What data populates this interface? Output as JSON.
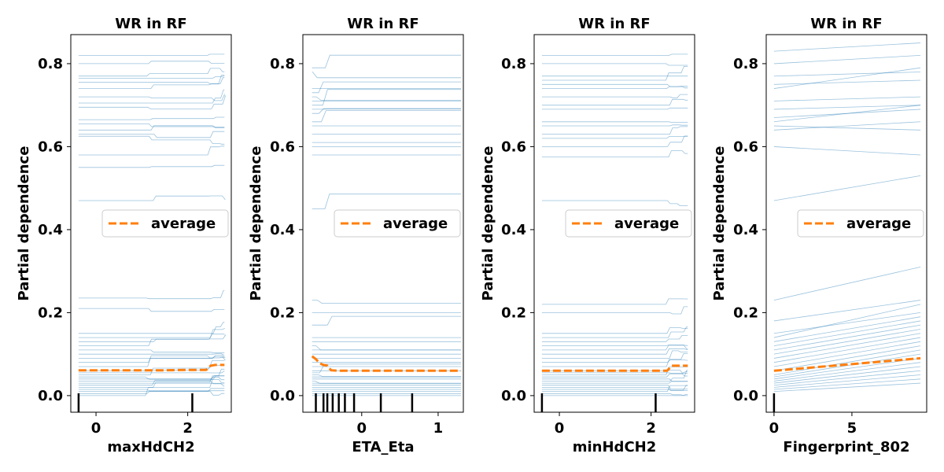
{
  "colors": {
    "ice": "#1f77b4",
    "average": "#ff7f0e",
    "rug": "#000000",
    "legend_border": "#cccccc"
  },
  "chart_data": [
    {
      "type": "line",
      "title": "WR in RF",
      "xlabel": "maxHdCH2",
      "ylabel": "Partial dependence",
      "xlim": [
        -0.55,
        2.95
      ],
      "ylim": [
        -0.04,
        0.87
      ],
      "xticks": [
        0,
        2
      ],
      "yticks": [
        0.0,
        0.2,
        0.4,
        0.6,
        0.8
      ],
      "ytick_labels": [
        "0.0",
        "0.2",
        "0.4",
        "0.6",
        "0.8"
      ],
      "legend": {
        "label": "average",
        "placement": "center-right"
      },
      "rug": [
        -0.38,
        2.1
      ],
      "ice_base": [
        0.82,
        0.8,
        0.77,
        0.765,
        0.755,
        0.74,
        0.72,
        0.705,
        0.695,
        0.665,
        0.655,
        0.64,
        0.63,
        0.625,
        0.58,
        0.55,
        0.47,
        0.235,
        0.21,
        0.15,
        0.14,
        0.13,
        0.12,
        0.11,
        0.1,
        0.09,
        0.08,
        0.07,
        0.06,
        0.055,
        0.05,
        0.045,
        0.04,
        0.035,
        0.03,
        0.025,
        0.02,
        0.015,
        0.01,
        0.005,
        0.0
      ],
      "ice_breaks": [
        [
          1.1,
          1.3,
          0.0,
          0.6
        ],
        [
          2.45,
          2.6,
          0.0,
          1.0
        ],
        [
          2.7,
          2.8,
          0.0,
          0.6
        ]
      ],
      "ice_jump": 0.015,
      "average": {
        "x": [
          -0.38,
          0.5,
          1.0,
          1.5,
          2.0,
          2.4,
          2.5,
          2.6,
          2.8
        ],
        "y": [
          0.061,
          0.061,
          0.061,
          0.061,
          0.062,
          0.062,
          0.072,
          0.074,
          0.074
        ]
      }
    },
    {
      "type": "line",
      "title": "WR in RF",
      "xlabel": "ETA_Eta",
      "ylabel": "Partial dependence",
      "xlim": [
        -0.77,
        1.33
      ],
      "ylim": [
        -0.04,
        0.87
      ],
      "xticks": [
        0,
        1
      ],
      "yticks": [
        0.0,
        0.2,
        0.4,
        0.6,
        0.8
      ],
      "ytick_labels": [
        "0.0",
        "0.2",
        "0.4",
        "0.6",
        "0.8"
      ],
      "legend": {
        "label": "average",
        "placement": "center-right"
      },
      "rug": [
        -0.6,
        -0.5,
        -0.45,
        -0.38,
        -0.3,
        -0.22,
        -0.1,
        0.25,
        0.66
      ],
      "ice_base": [
        0.79,
        0.78,
        0.74,
        0.73,
        0.72,
        0.71,
        0.7,
        0.69,
        0.68,
        0.66,
        0.65,
        0.63,
        0.61,
        0.6,
        0.58,
        0.45,
        0.23,
        0.2,
        0.17,
        0.14,
        0.13,
        0.12,
        0.11,
        0.1,
        0.09,
        0.08,
        0.07,
        0.06,
        0.055,
        0.05,
        0.045,
        0.04,
        0.035,
        0.03,
        0.025,
        0.02,
        0.015,
        0.01,
        0.005,
        0.0
      ],
      "ice_breaks": [
        [
          -0.68,
          -0.4,
          0.02,
          0.35
        ]
      ],
      "ice_jump": 0.035,
      "average": {
        "x": [
          -0.65,
          -0.6,
          -0.55,
          -0.5,
          -0.45,
          -0.4,
          -0.3,
          0.0,
          0.5,
          1.0,
          1.3
        ],
        "y": [
          0.095,
          0.088,
          0.078,
          0.074,
          0.072,
          0.061,
          0.06,
          0.06,
          0.06,
          0.06,
          0.06
        ]
      }
    },
    {
      "type": "line",
      "title": "WR in RF",
      "xlabel": "minHdCH2",
      "ylabel": "Partial dependence",
      "xlim": [
        -0.55,
        2.95
      ],
      "ylim": [
        -0.04,
        0.87
      ],
      "xticks": [
        0,
        2
      ],
      "yticks": [
        0.0,
        0.2,
        0.4,
        0.6,
        0.8
      ],
      "ytick_labels": [
        "0.0",
        "0.2",
        "0.4",
        "0.6",
        "0.8"
      ],
      "legend": {
        "label": "average",
        "placement": "center-right"
      },
      "rug": [
        -0.38,
        2.1
      ],
      "ice_base": [
        0.82,
        0.8,
        0.77,
        0.76,
        0.75,
        0.74,
        0.72,
        0.7,
        0.69,
        0.66,
        0.65,
        0.63,
        0.62,
        0.6,
        0.575,
        0.47,
        0.22,
        0.2,
        0.15,
        0.14,
        0.13,
        0.12,
        0.11,
        0.1,
        0.09,
        0.08,
        0.07,
        0.06,
        0.055,
        0.05,
        0.045,
        0.04,
        0.035,
        0.03,
        0.025,
        0.02,
        0.015,
        0.01,
        0.005,
        0.0
      ],
      "ice_breaks": [
        [
          2.35,
          2.45,
          0.0,
          1.0
        ],
        [
          2.6,
          2.75,
          0.0,
          0.6
        ]
      ],
      "ice_jump": 0.015,
      "average": {
        "x": [
          -0.38,
          0.5,
          1.0,
          1.5,
          2.0,
          2.35,
          2.45,
          2.8
        ],
        "y": [
          0.06,
          0.06,
          0.06,
          0.06,
          0.06,
          0.06,
          0.072,
          0.072
        ]
      }
    },
    {
      "type": "line",
      "title": "WR in RF",
      "xlabel": "Fingerprint_802",
      "ylabel": "Partial dependence",
      "xlim": [
        -0.5,
        9.8
      ],
      "ylim": [
        -0.04,
        0.87
      ],
      "xticks": [
        0,
        5
      ],
      "yticks": [
        0.0,
        0.2,
        0.4,
        0.6,
        0.8
      ],
      "ytick_labels": [
        "0.0",
        "0.2",
        "0.4",
        "0.6",
        "0.8"
      ],
      "legend": {
        "label": "average",
        "placement": "center-right"
      },
      "rug": [
        0.0
      ],
      "ice_start": [
        0.83,
        0.8,
        0.77,
        0.75,
        0.74,
        0.71,
        0.69,
        0.67,
        0.66,
        0.65,
        0.64,
        0.6,
        0.47,
        0.23,
        0.18,
        0.15,
        0.14,
        0.13,
        0.12,
        0.11,
        0.1,
        0.09,
        0.08,
        0.07,
        0.06,
        0.05,
        0.045,
        0.04,
        0.035,
        0.03,
        0.025,
        0.02,
        0.015,
        0.01
      ],
      "ice_end": [
        0.85,
        0.82,
        0.78,
        0.76,
        0.79,
        0.72,
        0.7,
        0.69,
        0.7,
        0.64,
        0.66,
        0.58,
        0.53,
        0.31,
        0.23,
        0.2,
        0.22,
        0.19,
        0.18,
        0.17,
        0.16,
        0.15,
        0.14,
        0.13,
        0.12,
        0.11,
        0.1,
        0.09,
        0.08,
        0.07,
        0.06,
        0.05,
        0.04,
        0.03
      ],
      "average": {
        "x": [
          0.0,
          9.4
        ],
        "y": [
          0.06,
          0.09
        ]
      }
    }
  ]
}
